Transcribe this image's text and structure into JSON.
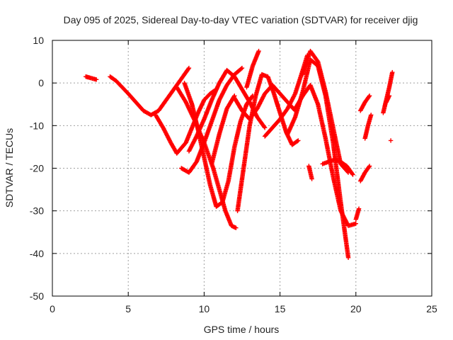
{
  "chart_data": {
    "type": "scatter",
    "title": "Day 095 of 2025, Sidereal Day-to-day VTEC variation (SDTVAR) for receiver djig",
    "xlabel": "GPS time / hours",
    "ylabel": "SDTVAR / TECUs",
    "xlim": [
      0,
      25
    ],
    "ylim": [
      -50,
      10
    ],
    "xticks": [
      0,
      5,
      10,
      15,
      20,
      25
    ],
    "yticks": [
      -50,
      -40,
      -30,
      -20,
      -10,
      0,
      10
    ],
    "grid": true,
    "marker": "+",
    "color": "#ff0000",
    "series": [
      {
        "x": [
          2.2,
          2.5,
          2.9
        ],
        "y": [
          1.5,
          1.2,
          0.8
        ]
      },
      {
        "x": [
          3.8,
          4.2,
          4.6,
          5.0,
          5.5,
          6.0,
          6.5,
          7.0,
          7.5
        ],
        "y": [
          1.5,
          0.5,
          -1.0,
          -2.5,
          -4.5,
          -6.5,
          -7.5,
          -6.5,
          -4.0
        ]
      },
      {
        "x": [
          7.5,
          8.0,
          8.5,
          9.0
        ],
        "y": [
          -4.0,
          -1.5,
          1.0,
          3.5
        ]
      },
      {
        "x": [
          6.8,
          7.3,
          7.8,
          8.2
        ],
        "y": [
          -7.5,
          -10.5,
          -14.0,
          -16.5
        ]
      },
      {
        "x": [
          8.2,
          8.8,
          9.2,
          9.6,
          10.0,
          10.4,
          10.8
        ],
        "y": [
          -16.5,
          -14.0,
          -10.5,
          -7.0,
          -4.0,
          -2.5,
          -1.5
        ]
      },
      {
        "x": [
          8.2,
          8.8,
          9.4,
          10.0,
          10.6,
          11.0,
          11.4,
          11.8,
          12.1
        ],
        "y": [
          -1.0,
          -4.5,
          -9.0,
          -14.0,
          -20.0,
          -25.0,
          -30.0,
          -33.5,
          -34.0
        ]
      },
      {
        "x": [
          8.5,
          9.0,
          9.5,
          10.0,
          10.5,
          11.0,
          11.5,
          12.0,
          12.5
        ],
        "y": [
          -20.0,
          -21.0,
          -18.5,
          -14.0,
          -9.0,
          -4.0,
          -0.5,
          2.0,
          3.5
        ]
      },
      {
        "x": [
          8.7,
          9.2,
          9.6,
          10.0,
          10.4,
          10.8,
          11.2,
          11.6,
          12.0,
          12.4,
          12.8,
          13.2
        ],
        "y": [
          0.0,
          -5.0,
          -11.0,
          -17.5,
          -24.0,
          -29.0,
          -28.0,
          -23.0,
          -15.0,
          -9.0,
          -5.0,
          -3.0
        ]
      },
      {
        "x": [
          9.0,
          9.5,
          10.0,
          10.5,
          11.0,
          11.5,
          12.0,
          12.5,
          13.0,
          13.5,
          14.0
        ],
        "y": [
          -16.0,
          -12.5,
          -8.5,
          -4.0,
          0.0,
          3.0,
          1.5,
          -1.5,
          -4.5,
          -8.0,
          -10.5
        ]
      },
      {
        "x": [
          10.5,
          11.0,
          11.5,
          12.0
        ],
        "y": [
          -19.0,
          -12.0,
          -6.0,
          -3.0
        ]
      },
      {
        "x": [
          12.0,
          12.5,
          13.0,
          13.5,
          14.0,
          14.5,
          15.0,
          15.5,
          16.0
        ],
        "y": [
          -3.5,
          -6.5,
          -8.5,
          -6.0,
          -2.5,
          -0.5,
          -2.5,
          -4.5,
          -6.5
        ]
      },
      {
        "x": [
          12.2,
          12.6,
          13.0,
          13.4,
          13.8,
          14.2,
          14.6,
          15.0,
          15.4,
          15.8,
          16.2
        ],
        "y": [
          -30.0,
          -20.0,
          -10.0,
          -3.0,
          2.0,
          1.5,
          -2.5,
          -7.0,
          -11.5,
          -14.5,
          -13.5
        ]
      },
      {
        "x": [
          12.8,
          13.2,
          13.6
        ],
        "y": [
          -1.0,
          4.0,
          7.5
        ]
      },
      {
        "x": [
          14.0,
          14.5,
          15.0,
          15.5,
          16.0,
          16.5,
          16.8
        ],
        "y": [
          -12.5,
          -10.5,
          -8.5,
          -6.0,
          -2.5,
          3.0,
          6.5
        ]
      },
      {
        "x": [
          15.5,
          16.0,
          16.5,
          17.0,
          17.5,
          18.0,
          18.5,
          19.0,
          19.5
        ],
        "y": [
          -12.0,
          -8.0,
          -2.0,
          5.5,
          4.0,
          -3.0,
          -14.0,
          -28.0,
          -41.0
        ]
      },
      {
        "x": [
          16.5,
          17.0,
          17.5,
          18.0,
          18.5,
          19.0,
          19.5
        ],
        "y": [
          2.0,
          7.5,
          5.0,
          -2.0,
          -10.5,
          -19.0,
          -21.0
        ]
      },
      {
        "x": [
          16.0,
          16.5,
          17.0,
          17.5,
          18.0,
          18.5,
          19.0,
          19.5,
          20.0
        ],
        "y": [
          -6.0,
          -3.0,
          -0.5,
          -5.0,
          -13.0,
          -22.0,
          -30.0,
          -33.5,
          -33.0
        ]
      },
      {
        "x": [
          16.9,
          17.1
        ],
        "y": [
          -19.5,
          -22.5
        ]
      },
      {
        "x": [
          17.8,
          18.2,
          18.6,
          19.0,
          19.4,
          19.8
        ],
        "y": [
          -19.0,
          -18.5,
          -18.0,
          -18.5,
          -19.5,
          -21.5
        ]
      },
      {
        "x": [
          20.0,
          20.2
        ],
        "y": [
          -32.0,
          -29.5
        ]
      },
      {
        "x": [
          20.3,
          20.6,
          20.9
        ],
        "y": [
          -23.0,
          -21.0,
          -19.5
        ]
      },
      {
        "x": [
          20.3,
          20.6,
          20.9
        ],
        "y": [
          -6.5,
          -4.5,
          -3.0
        ]
      },
      {
        "x": [
          20.6,
          20.8,
          21.0
        ],
        "y": [
          -13.0,
          -10.0,
          -7.5
        ]
      },
      {
        "x": [
          21.8,
          22.0,
          22.2,
          22.4
        ],
        "y": [
          -7.0,
          -4.0,
          -1.0,
          2.5
        ]
      },
      {
        "x": [
          22.0,
          22.2
        ],
        "y": [
          -4.5,
          -3.0
        ]
      },
      {
        "x": [
          22.3
        ],
        "y": [
          -13.5
        ]
      }
    ]
  }
}
